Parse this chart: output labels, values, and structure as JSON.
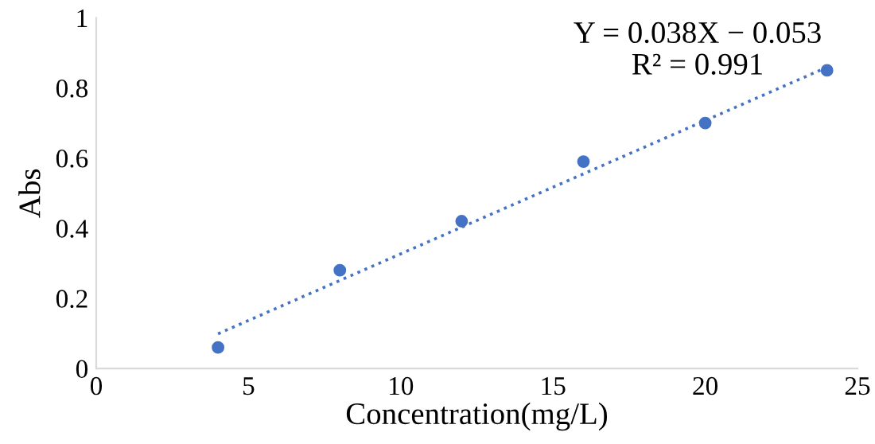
{
  "chart_data": {
    "type": "scatter",
    "xlabel": "Concentration(mg/L)",
    "ylabel": "Abs",
    "series": [
      {
        "color": "#4472c4",
        "marker": "circle",
        "x": [
          4,
          8,
          12,
          16,
          20,
          24
        ],
        "values": [
          0.06,
          0.28,
          0.42,
          0.59,
          0.7,
          0.85
        ]
      },
      {
        "type": "line",
        "color": "#4472c4",
        "marker": "none",
        "line_style": "dotted",
        "x": [
          4,
          24
        ],
        "values": [
          0.099,
          0.859
        ]
      }
    ],
    "annotations": [
      "Y = 0.038X − 0.053",
      "R² = 0.991"
    ],
    "xlim": [
      0,
      25
    ],
    "xticks": [
      0,
      5,
      10,
      15,
      20,
      25
    ],
    "ylim": [
      0,
      1
    ],
    "yticks": [
      0,
      0.2,
      0.4,
      0.6,
      0.8,
      1
    ],
    "grid": false,
    "legend": false
  }
}
